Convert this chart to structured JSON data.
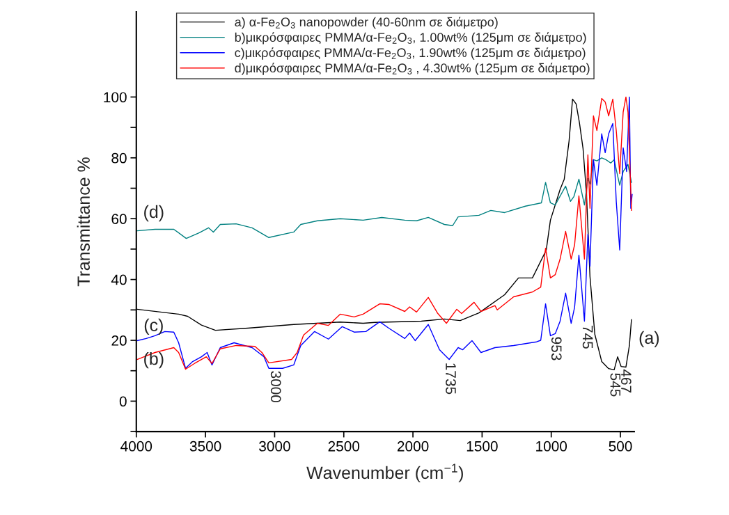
{
  "chart_data": {
    "type": "line",
    "xlabel": "Wavenumber (cm$^{−1}$)",
    "ylabel": "Transmittance %",
    "xlim": [
      4000,
      400
    ],
    "xticks": [
      4000,
      3500,
      3000,
      2500,
      2000,
      1500,
      1000,
      500
    ],
    "ylim": [
      -10,
      128
    ],
    "yticks": [
      0,
      20,
      40,
      60,
      80,
      100,
      {
        "value": -10,
        "label": null
      },
      {
        "value": 10,
        "label": null
      },
      {
        "value": 30,
        "label": null
      },
      {
        "value": 50,
        "label": null
      },
      {
        "value": 70,
        "label": null
      },
      {
        "value": 90,
        "label": null
      }
    ],
    "legend": "top",
    "grid": false,
    "marker": "none",
    "line_style": "solid",
    "series": [
      {
        "name": "a) α-Fe$_{2}$O$_{3}$ nanopowder (40-60nm σε διάμετρο)",
        "color": "#000000",
        "x": [
          3995,
          3694,
          3629,
          3529,
          3428,
          3193,
          2862,
          2526,
          2360,
          2275,
          1939,
          1773,
          1658,
          1523,
          1337,
          1237,
          1136,
          1036,
          1006,
          936,
          906,
          871,
          846,
          820,
          796,
          770,
          745,
          720,
          685,
          635,
          585,
          545,
          520,
          495,
          460,
          435,
          420
        ],
        "values": [
          30.2,
          28.6,
          27.9,
          25,
          23.3,
          24,
          25.2,
          26,
          25.6,
          25.9,
          26.3,
          27,
          26.5,
          29,
          35,
          40.5,
          40.5,
          49.7,
          59.5,
          69.6,
          73,
          85.6,
          99.3,
          97.7,
          91.5,
          83,
          68,
          41,
          22,
          13,
          10.7,
          10.3,
          14.6,
          11.4,
          11.2,
          18.3,
          26.8
        ]
      },
      {
        "name": "b)μικρόσφαιρες PMMA/α-Fe$_{2}$O$_{3}$, 1.00wt% (125μm σε διάμετρο)",
        "color": "#008080",
        "x": [
          3995,
          3865,
          3729,
          3639,
          3544,
          3478,
          3443,
          3393,
          3278,
          3163,
          3042,
          2862,
          2811,
          2691,
          2526,
          2360,
          2225,
          2059,
          1974,
          1889,
          1773,
          1713,
          1673,
          1523,
          1437,
          1337,
          1187,
          1071,
          1041,
          1006,
          971,
          896,
          861,
          836,
          800,
          760,
          735,
          720,
          695,
          670,
          635,
          605,
          570,
          545,
          520,
          505,
          480,
          445,
          435,
          420
        ],
        "values": [
          56,
          56.5,
          56.5,
          53.5,
          55.4,
          57,
          55.6,
          58.1,
          58.3,
          57,
          53.8,
          55.6,
          58.1,
          59.3,
          60,
          59.5,
          60.4,
          59.5,
          59.3,
          60.4,
          58.1,
          57.7,
          60.6,
          61.1,
          62.7,
          62,
          64.1,
          65.2,
          71.9,
          65.2,
          64.5,
          70.7,
          65.7,
          67.3,
          73,
          64.5,
          73.2,
          71.4,
          79.4,
          79,
          80,
          79.4,
          78.3,
          79.4,
          74.1,
          71,
          75.5,
          77.8,
          75.5,
          71.9
        ]
      },
      {
        "name": "c)μικρόσφαιρες PMMA/α-Fe$_{2}$O$_{3}$, 1.90wt% (125μm σε διάμετρο)",
        "color": "#0000ff",
        "x": [
          3995,
          3928,
          3865,
          3794,
          3729,
          3694,
          3644,
          3593,
          3529,
          3488,
          3453,
          3393,
          3293,
          3163,
          3077,
          3042,
          2942,
          2862,
          2811,
          2711,
          2611,
          2511,
          2425,
          2340,
          2240,
          2175,
          2059,
          2024,
          1984,
          1889,
          1808,
          1738,
          1673,
          1640,
          1573,
          1508,
          1407,
          1272,
          1106,
          1076,
          1041,
          1006,
          971,
          936,
          896,
          856,
          831,
          800,
          760,
          735,
          720,
          695,
          670,
          635,
          610,
          585,
          555,
          530,
          505,
          480,
          455,
          435,
          425,
          415
        ],
        "values": [
          19.9,
          20.6,
          21.5,
          22.9,
          22.7,
          19.2,
          10.8,
          13,
          14.6,
          16,
          11.9,
          17.6,
          19.2,
          17.6,
          14.6,
          10.8,
          10.8,
          11.9,
          18.3,
          22.9,
          20.4,
          24.5,
          22.7,
          22.9,
          26.1,
          24,
          20.6,
          22.4,
          19.9,
          25.2,
          16.9,
          13.7,
          17.6,
          16.9,
          19.9,
          16,
          17.6,
          18.3,
          19.5,
          20,
          32,
          21.5,
          22.2,
          26.3,
          35.5,
          25.6,
          30.9,
          48,
          26.3,
          54.9,
          44.4,
          79.4,
          71,
          87.9,
          81.7,
          87.9,
          91.3,
          65.7,
          49.7,
          83.3,
          75.5,
          100,
          63.4,
          68
        ]
      },
      {
        "name": "d)μικρόσφαιρες PMMA/α-Fe$_{2}$O$_{3}$ , 4.30wt% (125μm σε διάμετρο)",
        "color": "#ff0000",
        "x": [
          3995,
          3865,
          3729,
          3694,
          3644,
          3579,
          3494,
          3453,
          3393,
          3278,
          3142,
          3092,
          3042,
          2877,
          2837,
          2791,
          2691,
          2611,
          2526,
          2425,
          2360,
          2240,
          2175,
          2059,
          2024,
          1974,
          1889,
          1823,
          1758,
          1683,
          1648,
          1558,
          1508,
          1407,
          1390,
          1272,
          1136,
          1076,
          1041,
          1006,
          971,
          936,
          896,
          856,
          831,
          800,
          760,
          735,
          720,
          695,
          670,
          635,
          610,
          585,
          555,
          530,
          505,
          480,
          460,
          445,
          420
        ],
        "values": [
          13.7,
          16,
          17.6,
          16,
          10.5,
          12.4,
          14.6,
          12.4,
          17.2,
          18.3,
          18,
          16,
          12.6,
          13.7,
          16,
          21.7,
          25.6,
          24.9,
          28.6,
          27.7,
          28.6,
          32,
          31.8,
          29.5,
          31,
          29.3,
          34.1,
          29,
          25.6,
          30.2,
          28.8,
          32.5,
          29.5,
          31.4,
          30,
          34.3,
          35.9,
          37.5,
          50.3,
          40.5,
          41.6,
          46.7,
          55.8,
          46.7,
          51.4,
          67.5,
          46.7,
          81,
          63.4,
          93.8,
          89,
          99.5,
          98.4,
          93.8,
          99.3,
          89,
          74.8,
          95,
          100,
          95,
          62.7
        ]
      }
    ],
    "annotations": [
      "(d)",
      "(c)",
      "(b)",
      "(a)",
      {
        "text": "3000",
        "x": 3000,
        "y": 11
      },
      {
        "text": "1735",
        "x": 1735,
        "y": 13.7
      },
      {
        "text": "953",
        "x": 971,
        "y": 22.2
      },
      {
        "text": "745",
        "x": 745,
        "y": 26
      },
      {
        "text": "545",
        "x": 545,
        "y": 10.3
      },
      {
        "text": "467",
        "x": 467,
        "y": 11.5
      }
    ]
  }
}
